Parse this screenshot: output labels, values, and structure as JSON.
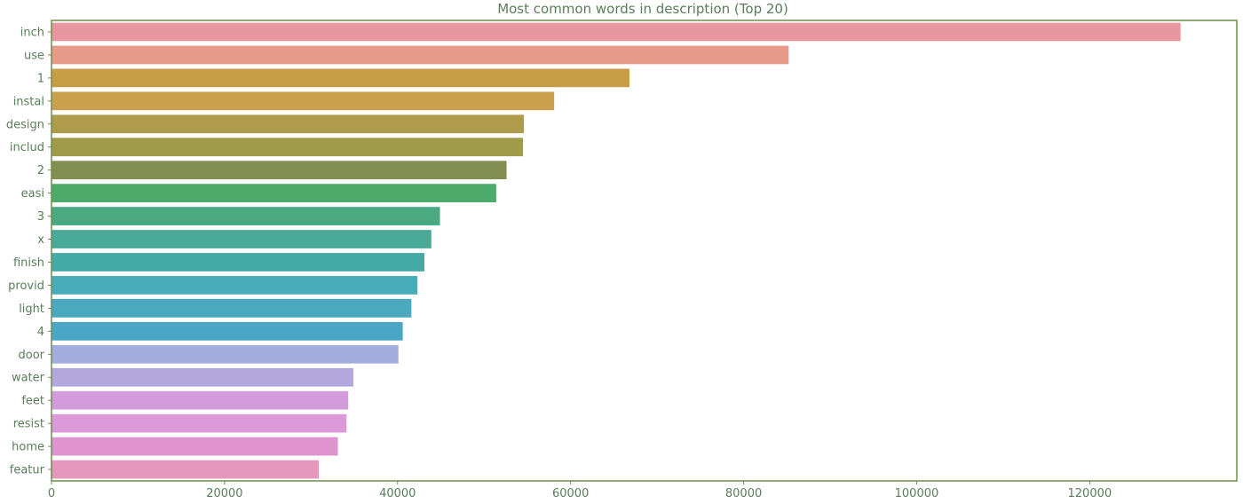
{
  "chart_data": {
    "type": "bar",
    "orientation": "horizontal",
    "title": "Most common words in description (Top 20)",
    "xlabel": "",
    "ylabel": "",
    "xlim": [
      0,
      137000
    ],
    "xticks": [
      0,
      20000,
      40000,
      60000,
      80000,
      100000,
      120000
    ],
    "xtick_labels": [
      "0",
      "20000",
      "40000",
      "60000",
      "80000",
      "100000",
      "120000"
    ],
    "categories": [
      "inch",
      "use",
      "1",
      "instal",
      "design",
      "includ",
      "2",
      "easi",
      "3",
      "x",
      "finish",
      "provid",
      "light",
      "4",
      "door",
      "water",
      "feet",
      "resist",
      "home",
      "featur"
    ],
    "values": [
      130500,
      85200,
      66800,
      58100,
      54600,
      54500,
      52600,
      51400,
      44900,
      43900,
      43100,
      42300,
      41600,
      40600,
      40100,
      34900,
      34300,
      34100,
      33100,
      30900
    ],
    "colors": [
      "#e8969f",
      "#e89a8a",
      "#c89b47",
      "#caa04f",
      "#ae9b4c",
      "#a09a4b",
      "#818e4f",
      "#4caa6a",
      "#4aa883",
      "#4aa997",
      "#45aaa6",
      "#49acb8",
      "#4aa9bf",
      "#4ba5c5",
      "#a3ade0",
      "#b2a8dd",
      "#d29cdb",
      "#dd9ad8",
      "#e094cf",
      "#e697bd"
    ],
    "grid": false,
    "legend": "none"
  }
}
